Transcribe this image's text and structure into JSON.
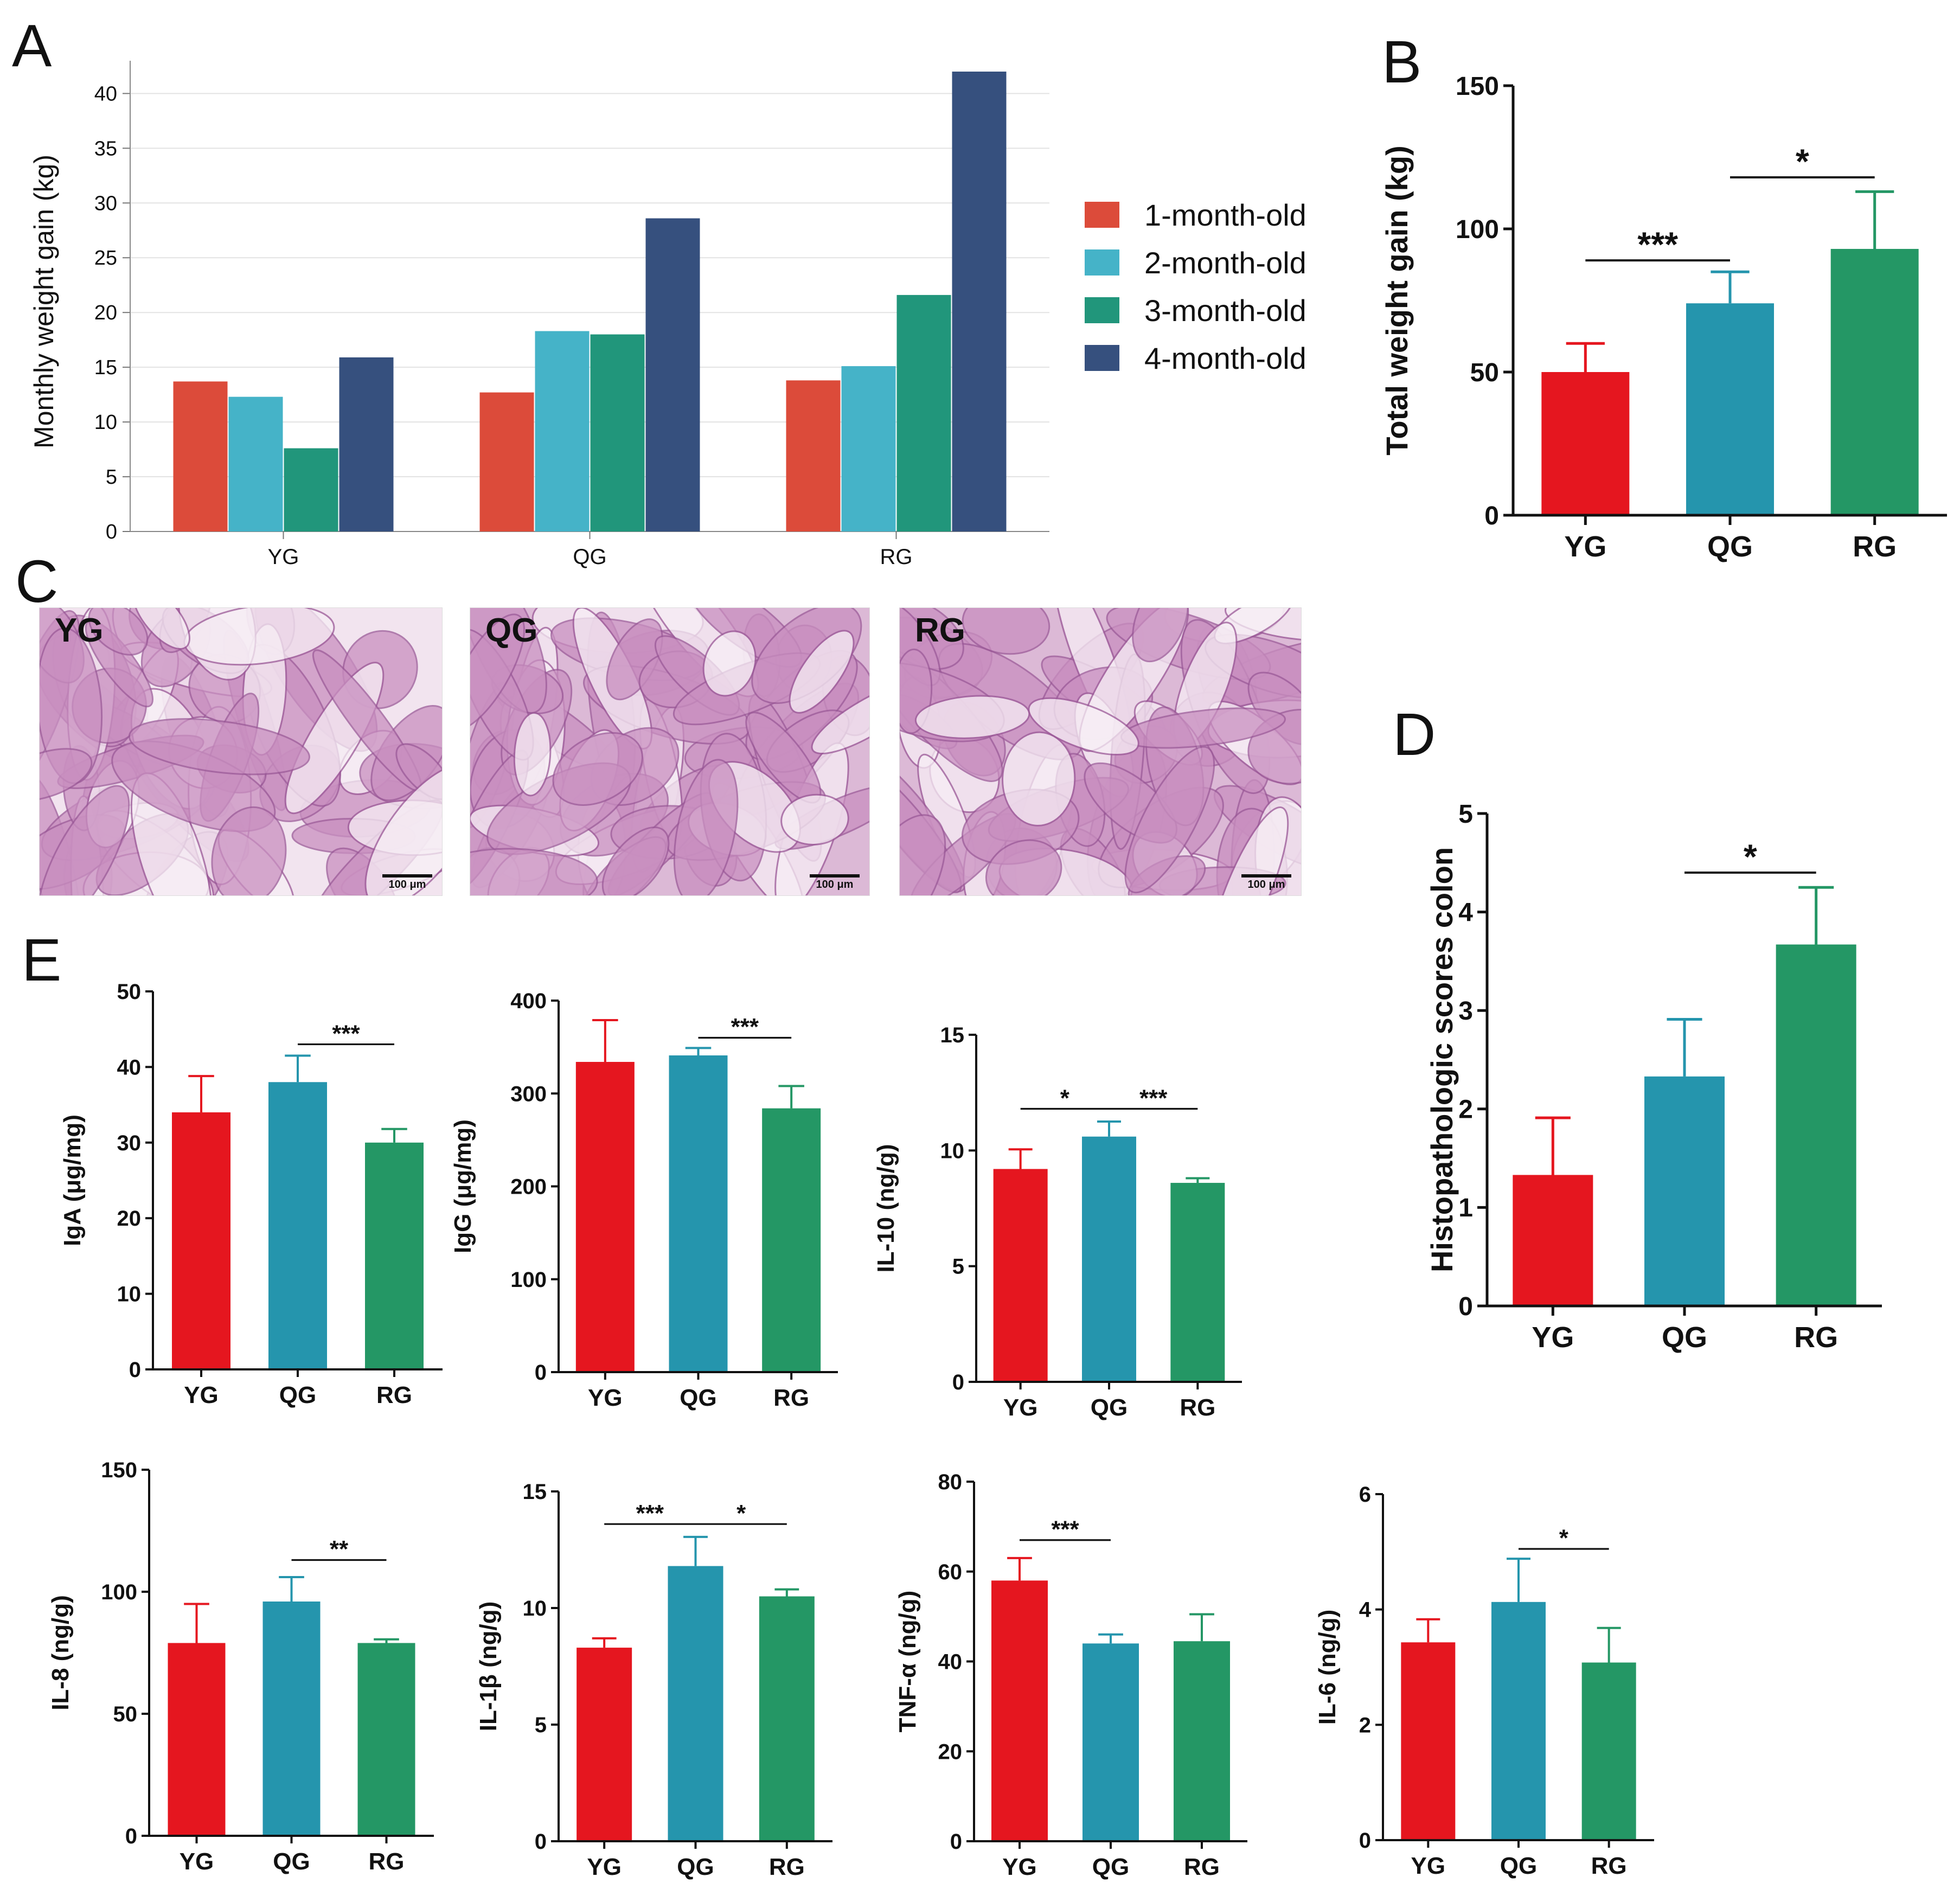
{
  "colors": {
    "YG": "#e5161f",
    "QG": "#2595ad",
    "RG": "#249765",
    "m1": "#dc4b3a",
    "m2": "#45b3c8",
    "m3": "#21967b",
    "m4": "#36507e"
  },
  "panels": {
    "A": "A",
    "B": "B",
    "C": "C",
    "D": "D",
    "E": "E"
  },
  "micrographs": [
    {
      "label": "YG",
      "scale": "100 μm"
    },
    {
      "label": "QG",
      "scale": "100 μm"
    },
    {
      "label": "RG",
      "scale": "100 μm"
    }
  ],
  "chart_data": [
    {
      "id": "A",
      "type": "bar",
      "title": "",
      "xlabel": "",
      "ylabel": "Monthly weight gain (kg)",
      "categories": [
        "YG",
        "QG",
        "RG"
      ],
      "series": [
        {
          "name": "1-month-old",
          "values": [
            13.7,
            12.7,
            13.8
          ]
        },
        {
          "name": "2-month-old",
          "values": [
            12.3,
            18.3,
            15.1
          ]
        },
        {
          "name": "3-month-old",
          "values": [
            7.6,
            18.0,
            21.6
          ]
        },
        {
          "name": "4-month-old",
          "values": [
            15.9,
            28.6,
            42.0
          ]
        }
      ],
      "ylim": [
        0,
        42
      ],
      "yticks": [
        0,
        5,
        10,
        15,
        20,
        25,
        30,
        35,
        40
      ],
      "grid": true,
      "legend": "right"
    },
    {
      "id": "B",
      "type": "bar",
      "ylabel": "Total weight gain (kg)",
      "categories": [
        "YG",
        "QG",
        "RG"
      ],
      "values": [
        50,
        74,
        93
      ],
      "errors": [
        10,
        11,
        20
      ],
      "ylim": [
        0,
        150
      ],
      "yticks": [
        0,
        50,
        100,
        150
      ],
      "annotations": [
        {
          "from": "YG",
          "to": "QG",
          "text": "***",
          "y": 89
        },
        {
          "from": "QG",
          "to": "RG",
          "text": "*",
          "y": 118
        }
      ]
    },
    {
      "id": "D",
      "type": "bar",
      "ylabel": "Histopathologic scores colon",
      "categories": [
        "YG",
        "QG",
        "RG"
      ],
      "values": [
        1.33,
        2.33,
        3.67
      ],
      "errors": [
        0.58,
        0.58,
        0.58
      ],
      "ylim": [
        0,
        5
      ],
      "yticks": [
        0,
        1,
        2,
        3,
        4,
        5
      ],
      "annotations": [
        {
          "from": "QG",
          "to": "RG",
          "text": "*",
          "y": 4.4
        }
      ]
    },
    {
      "id": "IgA",
      "type": "bar",
      "ylabel": "IgA (μg/mg)",
      "categories": [
        "YG",
        "QG",
        "RG"
      ],
      "values": [
        34,
        38,
        30
      ],
      "errors": [
        4.8,
        3.5,
        1.8
      ],
      "ylim": [
        0,
        50
      ],
      "yticks": [
        0,
        10,
        20,
        30,
        40,
        50
      ],
      "annotations": [
        {
          "from": "QG",
          "to": "RG",
          "text": "***",
          "y": 43
        }
      ]
    },
    {
      "id": "IgG",
      "type": "bar",
      "ylabel": "IgG (μg/mg)",
      "categories": [
        "YG",
        "QG",
        "RG"
      ],
      "values": [
        334,
        341,
        284
      ],
      "errors": [
        45,
        8,
        24
      ],
      "ylim": [
        0,
        400
      ],
      "yticks": [
        0,
        100,
        200,
        300,
        400
      ],
      "annotations": [
        {
          "from": "QG",
          "to": "RG",
          "text": "***",
          "y": 360
        }
      ]
    },
    {
      "id": "IL10",
      "type": "bar",
      "ylabel": "IL-10 (ng/g)",
      "categories": [
        "YG",
        "QG",
        "RG"
      ],
      "values": [
        9.2,
        10.6,
        8.6
      ],
      "errors": [
        0.85,
        0.65,
        0.2
      ],
      "ylim": [
        0,
        15
      ],
      "yticks": [
        0,
        5,
        10,
        15
      ],
      "annotations": [
        {
          "from": "YG",
          "to": "QG",
          "text": "*",
          "y": 11.8
        },
        {
          "from": "QG",
          "to": "RG",
          "text": "***",
          "y": 11.8
        }
      ]
    },
    {
      "id": "IL8",
      "type": "bar",
      "ylabel": "IL-8 (ng/g)",
      "categories": [
        "YG",
        "QG",
        "RG"
      ],
      "values": [
        79,
        96,
        79
      ],
      "errors": [
        16,
        10,
        1.5
      ],
      "ylim": [
        0,
        150
      ],
      "yticks": [
        0,
        50,
        100,
        150
      ],
      "annotations": [
        {
          "from": "QG",
          "to": "RG",
          "text": "**",
          "y": 113
        }
      ]
    },
    {
      "id": "IL1b",
      "type": "bar",
      "ylabel": "IL-1β (ng/g)",
      "categories": [
        "YG",
        "QG",
        "RG"
      ],
      "values": [
        8.3,
        11.8,
        10.5
      ],
      "errors": [
        0.4,
        1.25,
        0.3
      ],
      "ylim": [
        0,
        15
      ],
      "yticks": [
        0,
        5,
        10,
        15
      ],
      "annotations": [
        {
          "from": "YG",
          "to": "QG",
          "text": "***",
          "y": 13.6
        },
        {
          "from": "QG",
          "to": "RG",
          "text": "*",
          "y": 13.6
        }
      ]
    },
    {
      "id": "TNFa",
      "type": "bar",
      "ylabel": "TNF-α (ng/g)",
      "categories": [
        "YG",
        "QG",
        "RG"
      ],
      "values": [
        58,
        44,
        44.5
      ],
      "errors": [
        5,
        2,
        6
      ],
      "ylim": [
        0,
        80
      ],
      "yticks": [
        0,
        20,
        40,
        60,
        80
      ],
      "annotations": [
        {
          "from": "YG",
          "to": "QG",
          "text": "***",
          "y": 67
        }
      ]
    },
    {
      "id": "IL6",
      "type": "bar",
      "ylabel": "IL-6 (ng/g)",
      "categories": [
        "YG",
        "QG",
        "RG"
      ],
      "values": [
        3.43,
        4.13,
        3.08
      ],
      "errors": [
        0.4,
        0.75,
        0.6
      ],
      "ylim": [
        0,
        6
      ],
      "yticks": [
        0,
        2,
        4,
        6
      ],
      "annotations": [
        {
          "from": "QG",
          "to": "RG",
          "text": "*",
          "y": 5.05
        }
      ]
    }
  ]
}
